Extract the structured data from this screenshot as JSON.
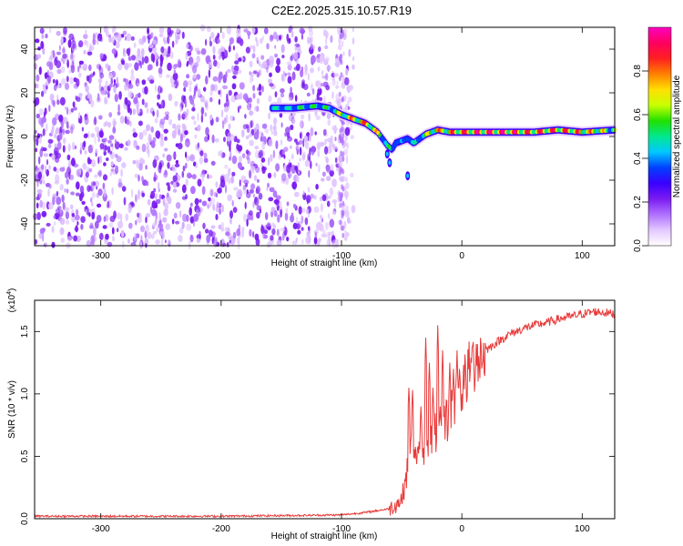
{
  "title": "C2E2.2025.315.10.57.R19",
  "chart_data": [
    {
      "type": "heatmap",
      "name": "spectrogram",
      "xlabel": "Height of straight line (km)",
      "ylabel": "Frequency (Hz)",
      "xlim": [
        -355,
        127
      ],
      "ylim": [
        -50,
        50
      ],
      "xticks": [
        -300,
        -200,
        -100,
        0,
        100
      ],
      "yticks": [
        -40,
        -20,
        0,
        20,
        40
      ],
      "colorbar": {
        "label": "Normalized spectral amplitude",
        "range": [
          0,
          1
        ],
        "ticks": [
          "0.0",
          "0.2",
          "0.4",
          "0.6",
          "0.8"
        ],
        "colors": [
          "#ffffff",
          "#e4c8ff",
          "#b070ff",
          "#7a1cf0",
          "#3a00ff",
          "#0040ff",
          "#00c8ff",
          "#00e890",
          "#20e000",
          "#c8ff00",
          "#ffe000",
          "#ff8000",
          "#ff2020",
          "#ff0060",
          "#ff00c0"
        ]
      },
      "trace": {
        "x": [
          -158,
          -140,
          -120,
          -110,
          -100,
          -90,
          -80,
          -70,
          -62,
          -58,
          -55,
          -50,
          -45,
          -40,
          -35,
          -30,
          -20,
          -10,
          0,
          20,
          40,
          60,
          80,
          100,
          127
        ],
        "y": [
          13,
          13,
          14,
          13,
          10,
          8,
          6,
          2,
          -4,
          -6,
          -3,
          -2,
          -1,
          -3,
          -1,
          1,
          3,
          2,
          2,
          2,
          2,
          2,
          3,
          2,
          3
        ],
        "peak_amplitude": [
          0.5,
          0.55,
          0.6,
          0.6,
          0.75,
          0.85,
          0.9,
          0.8,
          0.6,
          0.5,
          0.45,
          0.4,
          0.45,
          0.5,
          0.55,
          0.7,
          0.85,
          0.9,
          0.95,
          1.0,
          1.0,
          0.9,
          0.95,
          0.9,
          0.7
        ]
      },
      "noise_region": {
        "x_from": -355,
        "x_to": -100,
        "level": "low (violet)"
      }
    },
    {
      "type": "line",
      "name": "snr",
      "xlabel": "Height of straight line (km)",
      "ylabel": "SNR (10 * v/v)",
      "y_multiplier": "(x10",
      "y_multiplier_exp": "4",
      "y_multiplier_close": ")",
      "color": "#e83a3a",
      "xlim": [
        -355,
        127
      ],
      "ylim": [
        0,
        1.75
      ],
      "xticks": [
        -300,
        -200,
        -100,
        0,
        100
      ],
      "yticks": [
        "0.0",
        "0.5",
        "1.0",
        "1.5"
      ],
      "envelope": {
        "x": [
          -355,
          -300,
          -200,
          -100,
          -80,
          -60,
          -50,
          -45,
          -42,
          -40,
          -38,
          -35,
          -32,
          -30,
          -25,
          -20,
          -15,
          -12,
          -10,
          -8,
          -5,
          0,
          5,
          10,
          20,
          30,
          40,
          50,
          60,
          70,
          80,
          90,
          100,
          110,
          120,
          127
        ],
        "y": [
          0.02,
          0.02,
          0.02,
          0.03,
          0.05,
          0.08,
          0.15,
          0.4,
          0.55,
          0.6,
          0.45,
          0.5,
          0.55,
          0.6,
          0.65,
          0.7,
          0.75,
          0.8,
          0.85,
          0.9,
          0.95,
          1.05,
          1.15,
          1.25,
          1.35,
          1.42,
          1.48,
          1.52,
          1.55,
          1.57,
          1.6,
          1.62,
          1.64,
          1.66,
          1.65,
          1.64
        ]
      },
      "spikes": {
        "x": [
          -47,
          -44,
          -41,
          -38,
          -34,
          -30,
          -27,
          -24,
          -20,
          -16,
          -13,
          -10,
          -7,
          -4,
          -2,
          3,
          8,
          12
        ],
        "y": [
          0.3,
          1.05,
          1.03,
          0.5,
          0.9,
          1.45,
          1.25,
          1.05,
          1.55,
          1.35,
          0.95,
          1.25,
          1.2,
          1.35,
          1.2,
          1.25,
          1.25,
          1.4
        ]
      }
    }
  ]
}
